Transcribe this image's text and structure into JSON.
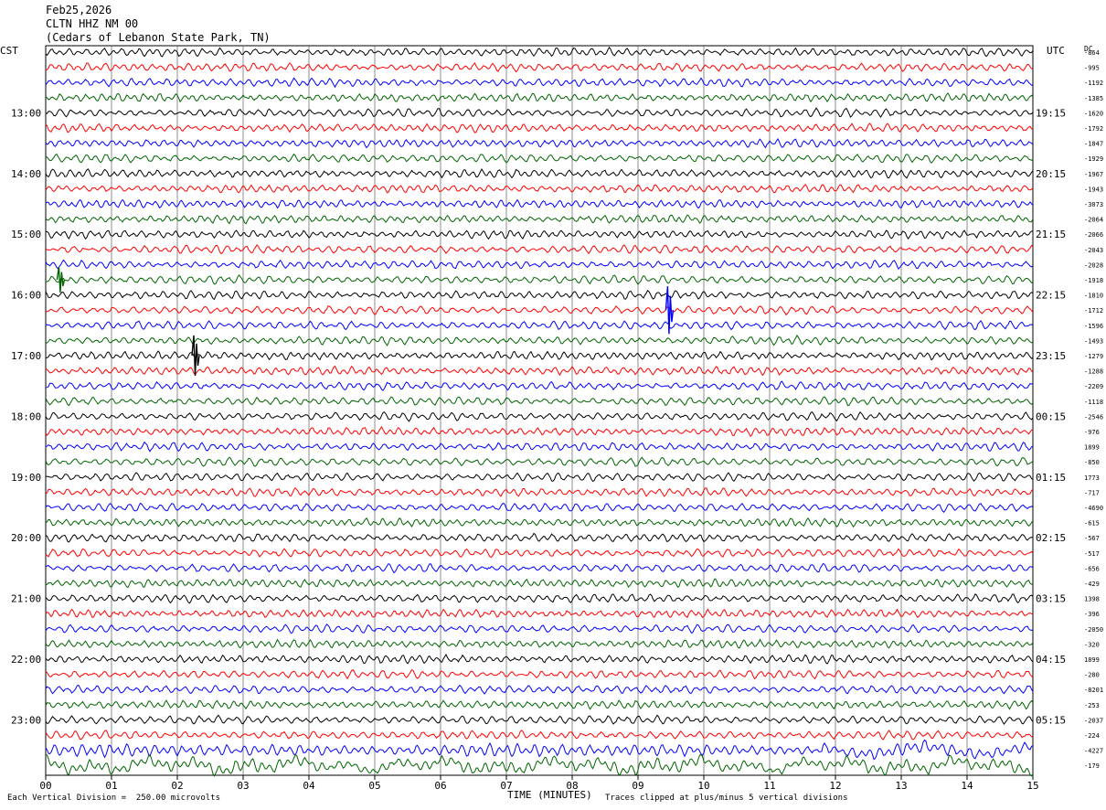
{
  "header": {
    "date": "Feb25,2026",
    "station": "CLTN HHZ NM 00",
    "location": "(Cedars of Lebanon State Park, TN)"
  },
  "left_axis_title": "CST",
  "right_axis_title": "UTC",
  "dc_title": "DC",
  "footer": {
    "scale_note": "Each Vertical Division =  250.00 microvolts",
    "clip_note": "Traces clipped at plus/minus 5 vertical divisions"
  },
  "colors": {
    "cycle": [
      "#000000",
      "#ff0000",
      "#0000ff",
      "#006400"
    ],
    "grid": "#000000"
  },
  "chart_data": {
    "type": "line",
    "xlabel": "TIME (MINUTES)",
    "x_ticks": [
      "00",
      "01",
      "02",
      "03",
      "04",
      "05",
      "06",
      "07",
      "08",
      "09",
      "10",
      "11",
      "12",
      "13",
      "14",
      "15"
    ],
    "xlim": [
      0,
      15
    ],
    "trace_count": 48,
    "left_hour_labels": [
      "13:00",
      "14:00",
      "15:00",
      "16:00",
      "17:00",
      "18:00",
      "19:00",
      "20:00",
      "21:00",
      "22:00",
      "23:00"
    ],
    "right_hour_labels": [
      "19:15",
      "20:15",
      "21:15",
      "22:15",
      "23:15",
      "00:15",
      "01:15",
      "02:15",
      "03:15",
      "04:15",
      "05:15"
    ],
    "dc_offsets": [
      "-864",
      "-995",
      "-1192",
      "-1385",
      "-1620",
      "-1792",
      "-1847",
      "-1929",
      "-1967",
      "-1943",
      "-3073",
      "-2064",
      "-2066",
      "-2043",
      "-2028",
      "-1918",
      "-1810",
      "-1712",
      "-1596",
      "-1493",
      "-1279",
      "-1288",
      "-2209",
      "-1118",
      "-2546",
      "-976",
      "1899",
      "-850",
      "1773",
      "-717",
      "-4690",
      "-615",
      "-567",
      "-517",
      "-656",
      "-429",
      "1398",
      "-396",
      "-2050",
      "-320",
      "1899",
      "-280",
      "-8201",
      "-253",
      "-2037",
      "-224",
      "-4227",
      "-179"
    ]
  }
}
